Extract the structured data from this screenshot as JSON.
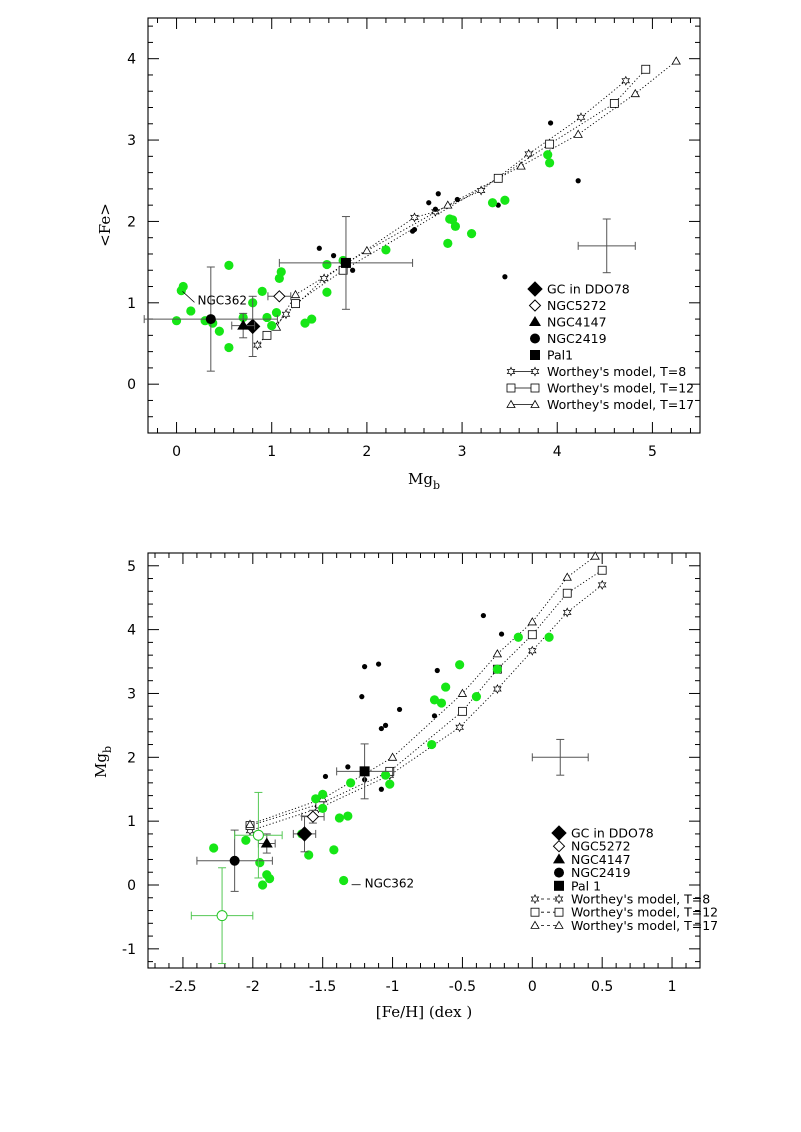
{
  "chart_data": [
    {
      "type": "scatter",
      "xlabel": "Mg",
      "xlabel_sub": "b",
      "ylabel": "<Fe>",
      "xlim": [
        -0.3,
        5.5
      ],
      "ylim": [
        -0.6,
        4.5
      ],
      "xticks": [
        0,
        1,
        2,
        3,
        4,
        5
      ],
      "yticks": [
        0,
        1,
        2,
        3,
        4
      ],
      "legend_position": "bottom-right",
      "legend": [
        {
          "label": "GC in DDO78",
          "marker": "diamond-filled"
        },
        {
          "label": "NGC5272",
          "marker": "diamond-open"
        },
        {
          "label": "NGC4147",
          "marker": "triangle-filled"
        },
        {
          "label": "NGC2419",
          "marker": "circle-filled"
        },
        {
          "label": "Pal1",
          "marker": "square-filled"
        },
        {
          "label": "Worthey's model, T=8",
          "marker": "star-open"
        },
        {
          "label": "Worthey's model, T=12",
          "marker": "square-open"
        },
        {
          "label": "Worthey's model, T=17",
          "marker": "triangle-open"
        }
      ],
      "annotations": [
        {
          "text": "NGC362",
          "x": 0.22,
          "y": 1.03
        }
      ],
      "green_points": [
        [
          0.0,
          0.78
        ],
        [
          0.05,
          1.15
        ],
        [
          0.07,
          1.2
        ],
        [
          0.15,
          0.9
        ],
        [
          0.55,
          1.46
        ],
        [
          0.3,
          0.78
        ],
        [
          0.38,
          0.75
        ],
        [
          0.45,
          0.65
        ],
        [
          0.55,
          0.45
        ],
        [
          0.7,
          0.82
        ],
        [
          0.8,
          1.0
        ],
        [
          0.9,
          1.14
        ],
        [
          0.95,
          0.82
        ],
        [
          1.0,
          0.72
        ],
        [
          1.05,
          0.88
        ],
        [
          1.08,
          1.3
        ],
        [
          1.1,
          1.38
        ],
        [
          1.35,
          0.75
        ],
        [
          1.42,
          0.8
        ],
        [
          1.58,
          1.13
        ],
        [
          1.58,
          1.47
        ],
        [
          1.75,
          1.52
        ],
        [
          2.2,
          1.65
        ],
        [
          2.85,
          1.73
        ],
        [
          2.87,
          2.03
        ],
        [
          2.9,
          2.02
        ],
        [
          2.93,
          1.94
        ],
        [
          3.1,
          1.85
        ],
        [
          3.32,
          2.23
        ],
        [
          3.45,
          2.26
        ],
        [
          3.9,
          2.82
        ],
        [
          3.92,
          2.72
        ]
      ],
      "black_points": [
        [
          1.5,
          1.67
        ],
        [
          1.65,
          1.58
        ],
        [
          1.85,
          1.4
        ],
        [
          2.48,
          1.88
        ],
        [
          2.5,
          1.9
        ],
        [
          2.65,
          2.23
        ],
        [
          2.72,
          2.15
        ],
        [
          2.75,
          2.34
        ],
        [
          2.95,
          2.27
        ],
        [
          3.38,
          2.2
        ],
        [
          3.45,
          1.32
        ],
        [
          3.93,
          3.21
        ],
        [
          4.22,
          2.5
        ]
      ],
      "highlight_points": [
        {
          "marker": "diamond-filled",
          "x": 0.8,
          "y": 0.71,
          "xerr": 0.0,
          "yerr": 0.37
        },
        {
          "marker": "diamond-open",
          "x": 1.08,
          "y": 1.08,
          "xerr": 0.12,
          "yerr": 0.0
        },
        {
          "marker": "triangle-filled",
          "x": 0.7,
          "y": 0.72,
          "xerr": 0.12,
          "yerr": 0.15
        },
        {
          "marker": "circle-filled",
          "x": 0.36,
          "y": 0.8,
          "xerr": 0.7,
          "yerr": 0.64
        },
        {
          "marker": "square-filled",
          "x": 1.78,
          "y": 1.49,
          "xerr": 0.7,
          "yerr": 0.57
        }
      ],
      "typical_error": {
        "x": 4.52,
        "y": 1.7,
        "xerr": 0.3,
        "yerr": 0.33
      },
      "models": [
        {
          "name": "Worthey's model, T=8",
          "marker": "star-open",
          "points": [
            [
              0.85,
              0.48
            ],
            [
              1.15,
              0.86
            ],
            [
              1.55,
              1.3
            ],
            [
              2.5,
              2.05
            ],
            [
              2.72,
              2.12
            ],
            [
              3.2,
              2.38
            ],
            [
              3.7,
              2.83
            ],
            [
              4.25,
              3.28
            ],
            [
              4.72,
              3.73
            ]
          ]
        },
        {
          "name": "Worthey's model, T=12",
          "marker": "square-open",
          "points": [
            [
              0.95,
              0.6
            ],
            [
              1.25,
              0.99
            ],
            [
              1.75,
              1.4
            ],
            [
              3.38,
              2.53
            ],
            [
              3.92,
              2.95
            ],
            [
              4.6,
              3.45
            ],
            [
              4.93,
              3.87
            ]
          ]
        },
        {
          "name": "Worthey's model, T=17",
          "marker": "triangle-open",
          "points": [
            [
              1.05,
              0.7
            ],
            [
              1.25,
              1.1
            ],
            [
              2.0,
              1.64
            ],
            [
              2.85,
              2.2
            ],
            [
              3.62,
              2.68
            ],
            [
              4.22,
              3.07
            ],
            [
              4.82,
              3.57
            ],
            [
              5.25,
              3.97
            ]
          ]
        }
      ]
    },
    {
      "type": "scatter",
      "xlabel": "[Fe/H] (dex  )",
      "ylabel": "Mg",
      "ylabel_sub": "b",
      "xlim": [
        -2.75,
        1.2
      ],
      "ylim": [
        -1.3,
        5.2
      ],
      "xticks": [
        -2.5,
        -2,
        -1.5,
        -1,
        -0.5,
        0,
        0.5,
        1
      ],
      "yticks": [
        -1,
        0,
        1,
        2,
        3,
        4,
        5
      ],
      "legend_position": "bottom-right",
      "legend": [
        {
          "label": "GC in DDO78",
          "marker": "diamond-filled"
        },
        {
          "label": "NGC5272",
          "marker": "diamond-open"
        },
        {
          "label": "NGC4147",
          "marker": "triangle-filled"
        },
        {
          "label": "NGC2419",
          "marker": "circle-filled"
        },
        {
          "label": "Pal 1",
          "marker": "square-filled"
        },
        {
          "label": "Worthey's model, T=8",
          "marker": "star-open"
        },
        {
          "label": "Worthey's model, T=12",
          "marker": "square-open"
        },
        {
          "label": "Worthey's model, T=17",
          "marker": "triangle-open"
        }
      ],
      "annotations": [
        {
          "text": "NGC362",
          "x": -1.2,
          "y": 0.02
        }
      ],
      "green_points": [
        [
          -2.28,
          0.58
        ],
        [
          -2.05,
          0.7
        ],
        [
          -1.95,
          0.35
        ],
        [
          -1.93,
          0.0
        ],
        [
          -1.9,
          0.16
        ],
        [
          -1.88,
          0.1
        ],
        [
          -1.65,
          0.8
        ],
        [
          -1.6,
          0.47
        ],
        [
          -1.55,
          1.35
        ],
        [
          -1.5,
          1.42
        ],
        [
          -1.5,
          1.2
        ],
        [
          -1.42,
          0.55
        ],
        [
          -1.38,
          1.05
        ],
        [
          -1.32,
          1.08
        ],
        [
          -1.35,
          0.07
        ],
        [
          -1.3,
          1.6
        ],
        [
          -1.02,
          1.58
        ],
        [
          -1.05,
          1.72
        ],
        [
          -0.72,
          2.2
        ],
        [
          -0.7,
          2.9
        ],
        [
          -0.65,
          2.85
        ],
        [
          -0.62,
          3.1
        ],
        [
          -0.52,
          3.45
        ],
        [
          -0.4,
          2.95
        ],
        [
          -0.25,
          3.38
        ],
        [
          -0.1,
          3.88
        ],
        [
          0.12,
          3.88
        ]
      ],
      "black_points": [
        [
          -1.48,
          1.7
        ],
        [
          -1.32,
          1.85
        ],
        [
          -1.2,
          1.65
        ],
        [
          -1.22,
          2.95
        ],
        [
          -1.2,
          3.42
        ],
        [
          -1.1,
          3.46
        ],
        [
          -1.08,
          1.5
        ],
        [
          -1.08,
          2.45
        ],
        [
          -1.05,
          2.5
        ],
        [
          -0.95,
          2.75
        ],
        [
          -0.7,
          2.65
        ],
        [
          -0.68,
          3.36
        ],
        [
          -0.35,
          4.22
        ],
        [
          -0.22,
          3.93
        ]
      ],
      "highlight_points": [
        {
          "marker": "diamond-filled",
          "x": -1.63,
          "y": 0.8,
          "xerr": 0.08,
          "yerr": 0.28
        },
        {
          "marker": "diamond-open",
          "x": -1.57,
          "y": 1.07,
          "xerr": 0.08,
          "yerr": 0.1
        },
        {
          "marker": "triangle-filled",
          "x": -1.9,
          "y": 0.65,
          "xerr": 0.06,
          "yerr": 0.15
        },
        {
          "marker": "circle-filled",
          "x": -2.13,
          "y": 0.38,
          "xerr": 0.27,
          "yerr": 0.48
        },
        {
          "marker": "square-filled",
          "x": -1.2,
          "y": 1.78,
          "xerr": 0.2,
          "yerr": 0.43
        },
        {
          "marker": "circle-open-green",
          "x": -1.96,
          "y": 0.78,
          "xerr": 0.17,
          "yerr": 0.67
        },
        {
          "marker": "circle-open-green",
          "x": -2.22,
          "y": -0.48,
          "xerr": 0.22,
          "yerr": 0.75
        }
      ],
      "typical_error": {
        "x": 0.2,
        "y": 2.0,
        "xerr": 0.2,
        "yerr": 0.28
      },
      "models": [
        {
          "name": "Worthey's model, T=8",
          "marker": "star-open",
          "points": [
            [
              -2.02,
              0.85
            ],
            [
              -1.53,
              1.2
            ],
            [
              -1.02,
              1.72
            ],
            [
              -0.52,
              2.47
            ],
            [
              -0.25,
              3.07
            ],
            [
              0.0,
              3.67
            ],
            [
              0.25,
              4.27
            ],
            [
              0.5,
              4.7
            ]
          ]
        },
        {
          "name": "Worthey's model, T=12",
          "marker": "square-open",
          "points": [
            [
              -2.02,
              0.93
            ],
            [
              -1.52,
              1.27
            ],
            [
              -1.02,
              1.78
            ],
            [
              -0.5,
              2.72
            ],
            [
              -0.25,
              3.38
            ],
            [
              0.0,
              3.92
            ],
            [
              0.25,
              4.57
            ],
            [
              0.5,
              4.93
            ]
          ]
        },
        {
          "name": "Worthey's model, T=17",
          "marker": "triangle-open",
          "points": [
            [
              -2.02,
              0.95
            ],
            [
              -1.5,
              1.35
            ],
            [
              -1.0,
              2.0
            ],
            [
              -0.5,
              3.0
            ],
            [
              -0.25,
              3.62
            ],
            [
              0.0,
              4.12
            ],
            [
              0.25,
              4.82
            ],
            [
              0.45,
              5.15
            ]
          ]
        }
      ]
    }
  ]
}
